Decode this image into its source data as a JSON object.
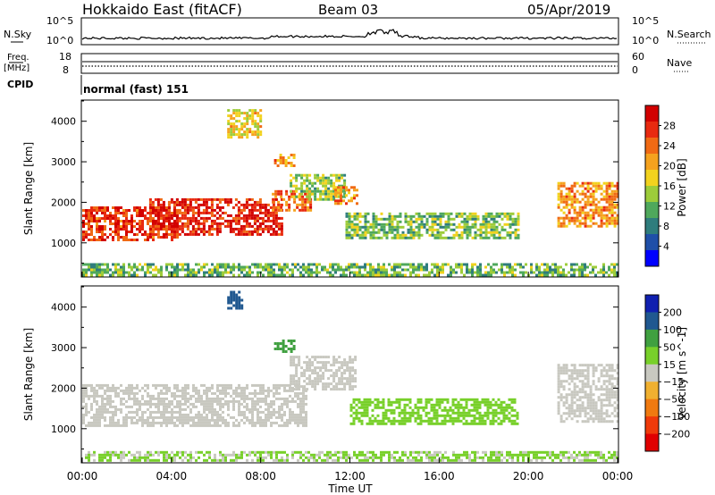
{
  "header": {
    "title": "Hokkaido East (fitACF)",
    "beam": "Beam 03",
    "date": "05/Apr/2019"
  },
  "nsky_panel": {
    "label": "N.Sky",
    "left_ticks": [
      "10^5",
      "10^0"
    ],
    "right_ticks": [
      "10^5",
      "10^0"
    ],
    "right_label": "N.Search"
  },
  "freq_panel": {
    "label_line1": "Freq.",
    "label_line2": "[MHz]",
    "left_ticks": [
      "18",
      "8"
    ],
    "right_ticks": [
      "60",
      "0"
    ],
    "right_label": "Nave"
  },
  "cpid_panel": {
    "label": "CPID",
    "mode_text": "normal (fast) 151"
  },
  "chart_data": [
    {
      "type": "heatmap",
      "name": "power",
      "ylabel": "Slant Range [km]",
      "yticks": [
        "4000",
        "3000",
        "2000",
        "1000"
      ],
      "ytick_values": [
        4000,
        3000,
        2000,
        1000
      ],
      "ylim": [
        180,
        4500
      ],
      "xlim": [
        0,
        24
      ],
      "colorbar": {
        "label": "Power [dB]",
        "ticks": [
          "28",
          "24",
          "20",
          "16",
          "12",
          "8",
          "4"
        ],
        "tick_values": [
          28,
          24,
          20,
          16,
          12,
          8,
          4
        ],
        "range": [
          0,
          32
        ],
        "colors": [
          "#0000ff",
          "#1f4fa8",
          "#2f7d7d",
          "#4fa85c",
          "#9dcc3a",
          "#f2d21e",
          "#f5a21e",
          "#f06a14",
          "#e82a10",
          "#d20000"
        ]
      },
      "regions": [
        {
          "t0": 0.0,
          "t1": 4.3,
          "r0": 1050,
          "r1": 1900,
          "value": 27
        },
        {
          "t0": 3.0,
          "t1": 9.0,
          "r0": 1200,
          "r1": 2100,
          "value": 28
        },
        {
          "t0": 8.5,
          "t1": 10.3,
          "r0": 1800,
          "r1": 2300,
          "value": 24
        },
        {
          "t0": 9.3,
          "t1": 11.8,
          "r0": 2100,
          "r1": 2700,
          "value": 14
        },
        {
          "t0": 11.3,
          "t1": 12.3,
          "r0": 2000,
          "r1": 2400,
          "value": 22
        },
        {
          "t0": 11.8,
          "t1": 19.5,
          "r0": 1100,
          "r1": 1750,
          "value": 13
        },
        {
          "t0": 21.3,
          "t1": 24.0,
          "r0": 1400,
          "r1": 2500,
          "value": 22
        },
        {
          "t0": 0.0,
          "t1": 24.0,
          "r0": 200,
          "r1": 500,
          "value": 12
        },
        {
          "t0": 6.5,
          "t1": 8.0,
          "r0": 3600,
          "r1": 4300,
          "value": 18
        },
        {
          "t0": 8.6,
          "t1": 9.5,
          "r0": 2900,
          "r1": 3200,
          "value": 22
        }
      ]
    },
    {
      "type": "heatmap",
      "name": "velocity",
      "ylabel": "Slant Range [km]",
      "yticks": [
        "4000",
        "3000",
        "2000",
        "1000"
      ],
      "ytick_values": [
        4000,
        3000,
        2000,
        1000
      ],
      "ylim": [
        180,
        4500
      ],
      "xlim": [
        0,
        24
      ],
      "xticks": [
        "00:00",
        "04:00",
        "08:00",
        "12:00",
        "16:00",
        "20:00",
        "00:00"
      ],
      "xtick_values": [
        0,
        4,
        8,
        12,
        16,
        20,
        24
      ],
      "xlabel": "Time UT",
      "colorbar": {
        "label": "Velocity [m s^-1]",
        "ticks": [
          "200",
          "100",
          "50",
          "15",
          "−15",
          "−50",
          "−100",
          "−200"
        ],
        "tick_values": [
          200,
          100,
          50,
          15,
          -15,
          -50,
          -100,
          -200
        ],
        "colors": [
          "#e00000",
          "#ef3a0a",
          "#f07a10",
          "#f0b030",
          "#c8c8c0",
          "#78d02a",
          "#40a040",
          "#205890",
          "#1020b0"
        ]
      },
      "regions": [
        {
          "t0": 0.0,
          "t1": 10.0,
          "r0": 1050,
          "r1": 2100,
          "value": 0
        },
        {
          "t0": 9.3,
          "t1": 12.2,
          "r0": 2000,
          "r1": 2800,
          "value": 0
        },
        {
          "t0": 12.0,
          "t1": 19.5,
          "r0": 1150,
          "r1": 1750,
          "value": 30
        },
        {
          "t0": 21.3,
          "t1": 24.0,
          "r0": 1200,
          "r1": 2600,
          "value": 0
        },
        {
          "t0": 0.0,
          "t1": 24.0,
          "r0": 200,
          "r1": 450,
          "value": 20
        },
        {
          "t0": 6.5,
          "t1": 7.2,
          "r0": 4000,
          "r1": 4400,
          "value": 150
        },
        {
          "t0": 8.6,
          "t1": 9.5,
          "r0": 2900,
          "r1": 3200,
          "value": 80
        }
      ]
    }
  ]
}
